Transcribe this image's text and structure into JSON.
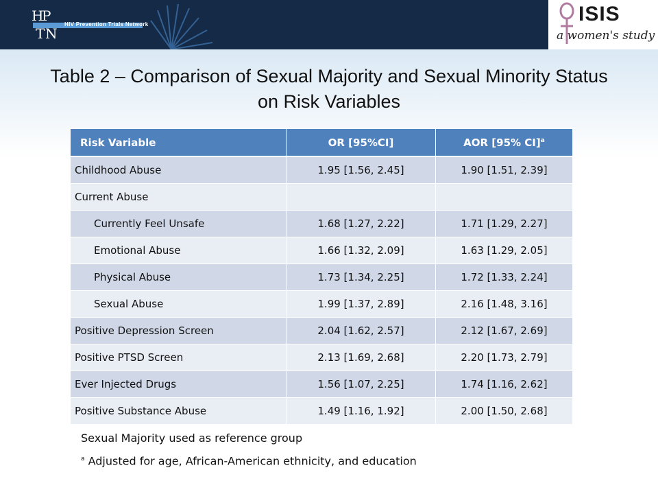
{
  "header": {
    "logo_left_letters": "HPTN",
    "logo_left_text": "HIV Prevention Trials Network",
    "logo_right_title": "ISIS",
    "logo_right_subtitle": "a women's study"
  },
  "title": "Table 2 – Comparison of Sexual Majority and Sexual Minority Status on Risk Variables",
  "table": {
    "headers": {
      "risk_variable": "Risk Variable",
      "or": "OR [95%CI]",
      "aor": "AOR [95% CI]",
      "aor_superscript": "a"
    },
    "rows": [
      {
        "label": "Childhood Abuse",
        "or": "1.95 [1.56, 2.45]",
        "aor": "1.90 [1.51, 2.39]"
      },
      {
        "label": "Current Abuse",
        "or": "",
        "aor": ""
      },
      {
        "label": "Currently Feel Unsafe",
        "or": "1.68 [1.27, 2.22]",
        "aor": "1.71 [1.29, 2.27]"
      },
      {
        "label": "Emotional Abuse",
        "or": "1.66 [1.32, 2.09]",
        "aor": "1.63 [1.29, 2.05]"
      },
      {
        "label": "Physical Abuse",
        "or": "1.73 [1.34, 2.25]",
        "aor": "1.72 [1.33, 2.24]"
      },
      {
        "label": "Sexual Abuse",
        "or": "1.99 [1.37, 2.89]",
        "aor": "2.16 [1.48, 3.16]"
      },
      {
        "label": "Positive Depression Screen",
        "or": "2.04 [1.62, 2.57]",
        "aor": "2.12 [1.67, 2.69]"
      },
      {
        "label": "Positive PTSD Screen",
        "or": "2.13 [1.69, 2.68]",
        "aor": "2.20 [1.73, 2.79]"
      },
      {
        "label": "Ever Injected Drugs",
        "or": "1.56 [1.07, 2.25]",
        "aor": "1.74 [1.16, 2.62]"
      },
      {
        "label": "Positive Substance Abuse",
        "or": "1.49 [1.16, 1.92]",
        "aor": "2.00 [1.50, 2.68]"
      }
    ]
  },
  "notes": {
    "reference": "Sexual Majority used as reference group",
    "footnote_marker": "a",
    "footnote": "Adjusted for age, African-American ethnicity, and education"
  },
  "colors": {
    "header_bar": "#142a46",
    "table_header": "#4f81bd",
    "row_odd": "#d0d8e8",
    "row_even": "#e9edf4",
    "isis_symbol": "#b07aa1"
  }
}
